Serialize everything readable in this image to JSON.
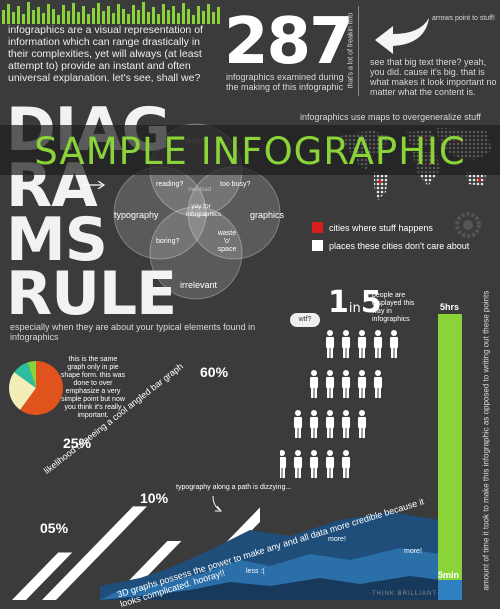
{
  "intro": "infographics are a visual representation of information which can range drastically in their complexities, yet will always (at least attempt to) provide an instant and often universal explanation. let's see, shall we?",
  "stat": {
    "number": "287",
    "caption": "infographics examined during the making of this infographic",
    "vertical_note": "that's a lot of freakin info"
  },
  "arrow_note": {
    "label": "arrows point to stuff!",
    "text": "see that big text there? yeah, you did. cause it's big. that is what makes it look important no matter what the content is."
  },
  "banner": "SAMPLE INFOGRAPHIC",
  "diagrams": {
    "words": [
      "DIAG",
      "RA",
      "MS",
      "RULE"
    ],
    "subtitle": "especially when they are about your typical elements found in infographics"
  },
  "venn": {
    "top": "pretty",
    "reading": "reading?",
    "overload": "overload",
    "too_busy": "too busy?",
    "typography": "typography",
    "center": "yay for infographics",
    "graphics": "graphics",
    "boring": "boring?",
    "waste": "waste 'o' space",
    "irrelevant": "irrelevant"
  },
  "map": {
    "caption": "infographics use maps to overgeneralize stuff",
    "legend": [
      {
        "label": "cities where stuff happens",
        "color": "#d91c1c"
      },
      {
        "label": "places these cities don't care about",
        "color": "#ffffff"
      }
    ]
  },
  "people": {
    "ratio_a": "1",
    "ratio_in": "in",
    "ratio_b": "5",
    "note": "people are displayed this way in infographics",
    "bubble": "wtf?"
  },
  "pie": {
    "text": "this is the same graph only in pie shape form. this was done to over emphasize a very simple point but now you think it's really important.",
    "chart_data": {
      "type": "pie",
      "slices": [
        {
          "value": 60,
          "color": "#e0531d"
        },
        {
          "value": 25,
          "color": "#f3edb8"
        },
        {
          "value": 10,
          "color": "#2bbfa0"
        },
        {
          "value": 5,
          "color": "#8ad43a"
        }
      ]
    }
  },
  "angled": {
    "label": "likelihood of seeing a cool angled bar graph",
    "chart_data": {
      "type": "bar",
      "values": [
        5,
        25,
        10,
        60
      ],
      "labels": [
        "05%",
        "25%",
        "10%",
        "60%"
      ]
    }
  },
  "path_text": {
    "note": "typography along a path is dizzying...",
    "text": "3D graphs possess the power to make any and all data more credible because it looks complicated. hooray!!",
    "more1": "more!",
    "more2": "more!",
    "less": "less :(",
    "think": "THINK BRILLIANT"
  },
  "timer": {
    "top": "5hrs",
    "bottom": "5min",
    "vertical": "amount of time it took to make this infographic as opposed to writing out these points"
  },
  "colors": {
    "accent": "#8ad43a",
    "orange": "#e0531d",
    "red": "#d91c1c",
    "blue": "#2a6fa8"
  }
}
